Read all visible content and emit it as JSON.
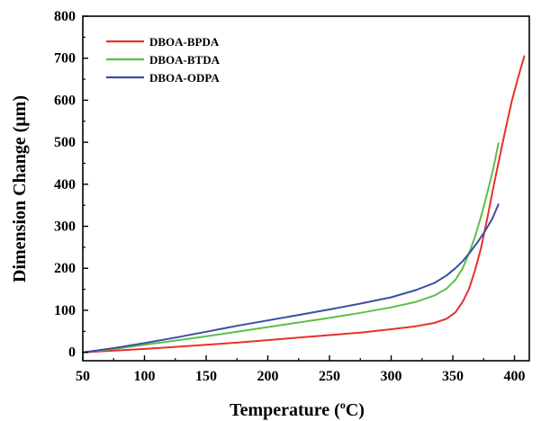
{
  "chart_data": {
    "type": "line",
    "xlabel_main": "Temperature (",
    "xlabel_sup": "o",
    "xlabel_end": "C)",
    "ylabel": "Dimension Change (μm)",
    "xlim": [
      50,
      412
    ],
    "ylim": [
      -20,
      800
    ],
    "xticks": [
      50,
      100,
      150,
      200,
      250,
      300,
      350,
      400
    ],
    "yticks": [
      0,
      100,
      200,
      300,
      400,
      500,
      600,
      700,
      800
    ],
    "grid": false,
    "legend_position": "top-left",
    "series": [
      {
        "name": "DBOA-BPDA",
        "color": "#e8302a",
        "x": [
          50,
          75,
          100,
          125,
          150,
          175,
          200,
          225,
          250,
          275,
          300,
          320,
          335,
          345,
          352,
          358,
          363,
          368,
          373,
          378,
          383,
          388,
          393,
          398,
          403,
          408
        ],
        "y": [
          0,
          4,
          8,
          13,
          18,
          23,
          29,
          35,
          41,
          47,
          55,
          62,
          70,
          80,
          95,
          120,
          150,
          195,
          250,
          320,
          395,
          465,
          535,
          600,
          655,
          705
        ]
      },
      {
        "name": "DBOA-BTDA",
        "color": "#5cbf4a",
        "x": [
          50,
          75,
          100,
          125,
          150,
          175,
          200,
          225,
          250,
          275,
          300,
          320,
          335,
          345,
          352,
          358,
          363,
          368,
          373,
          378,
          383,
          387
        ],
        "y": [
          0,
          8,
          18,
          28,
          38,
          49,
          60,
          71,
          82,
          94,
          107,
          120,
          135,
          152,
          172,
          200,
          235,
          275,
          325,
          380,
          440,
          498
        ]
      },
      {
        "name": "DBOA-ODPA",
        "color": "#3a4fa3",
        "x": [
          50,
          75,
          100,
          125,
          150,
          175,
          200,
          225,
          250,
          275,
          300,
          320,
          335,
          345,
          352,
          358,
          364,
          370,
          376,
          382,
          387
        ],
        "y": [
          0,
          10,
          22,
          35,
          49,
          63,
          76,
          89,
          102,
          116,
          131,
          148,
          165,
          183,
          200,
          217,
          238,
          262,
          288,
          318,
          352
        ]
      }
    ]
  }
}
